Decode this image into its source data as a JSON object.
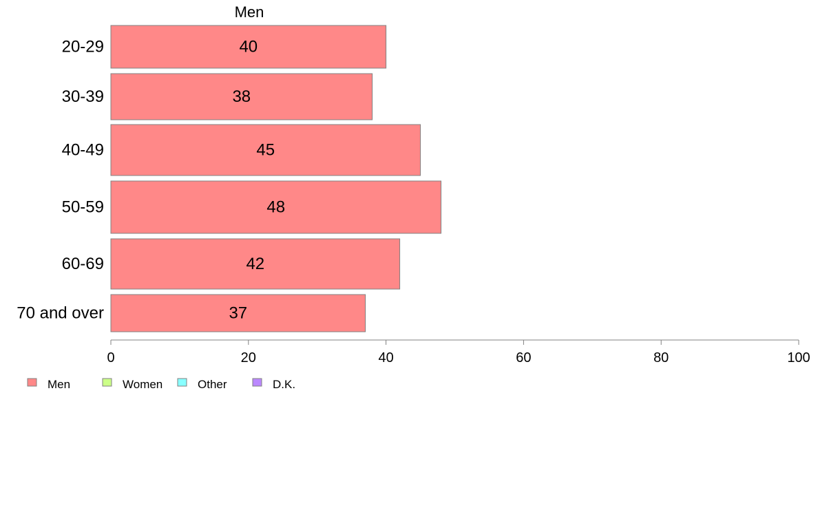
{
  "chart_data": {
    "type": "bar",
    "orientation": "horizontal",
    "title": "Men",
    "categories": [
      "20-29",
      "30-39",
      "40-49",
      "50-59",
      "60-69",
      "70 and over"
    ],
    "series": [
      {
        "name": "Men",
        "values": [
          40,
          38,
          45,
          48,
          42,
          37
        ],
        "color": "#ff8888"
      }
    ],
    "data_labels": [
      "40",
      "38",
      "45",
      "48",
      "42",
      "37"
    ],
    "xlim": [
      0,
      100
    ],
    "xticks": [
      "0",
      "20",
      "40",
      "60",
      "80",
      "100"
    ],
    "xlabel": "",
    "ylabel": "",
    "grid": false,
    "legend": {
      "position": "bottom-left",
      "items": [
        {
          "label": "Men",
          "color": "#ff8888"
        },
        {
          "label": "Women",
          "color": "#ccff88"
        },
        {
          "label": "Other",
          "color": "#88ffff"
        },
        {
          "label": "D.K.",
          "color": "#bb88ff"
        }
      ]
    }
  }
}
